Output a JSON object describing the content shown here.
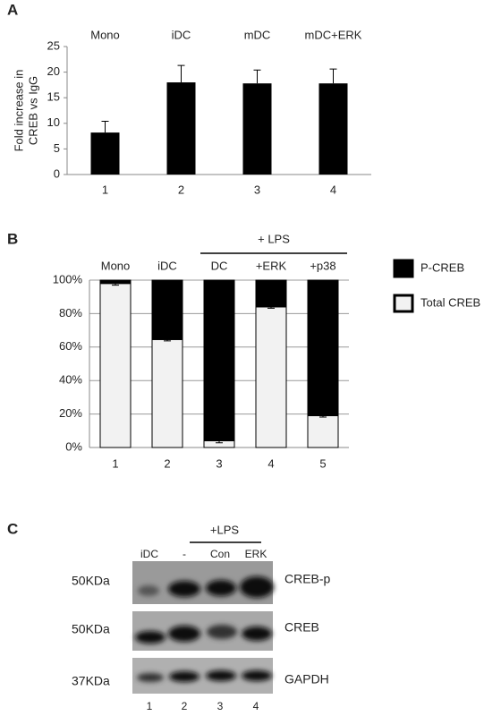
{
  "panels": [
    "A",
    "B",
    "C"
  ],
  "chart_data": [
    {
      "type": "bar",
      "ylabel": [
        "Fold increase in",
        "CREB vs IgG"
      ],
      "group_labels": [
        "Mono",
        "iDC",
        "mDC",
        "mDC+ERK"
      ],
      "categories": [
        "1",
        "2",
        "3",
        "4"
      ],
      "values": [
        8.2,
        18,
        17.8,
        17.8
      ],
      "errors": [
        2.2,
        3.3,
        2.6,
        2.8
      ],
      "color": "#000000",
      "ylim": [
        0,
        25
      ],
      "yticks": [
        0,
        5,
        10,
        15,
        20,
        25
      ],
      "grid": false
    },
    {
      "type": "stacked_bar",
      "span_label": "+ LPS",
      "group_labels": [
        "Mono",
        "iDC",
        "DC",
        "+ERK",
        "+p38"
      ],
      "categories": [
        "1",
        "2",
        "3",
        "4",
        "5"
      ],
      "series": [
        {
          "name": "Total CREB",
          "color": "#f2f2f2",
          "values": [
            98,
            64.5,
            4,
            84,
            19
          ],
          "errors": [
            1,
            0.8,
            1.2,
            0.8,
            0.8
          ]
        },
        {
          "name": "P-CREB",
          "color": "#000000",
          "values": [
            2,
            35.5,
            96,
            16,
            81
          ]
        }
      ],
      "ylim": [
        0,
        100
      ],
      "yticks": [
        {
          "value": 0,
          "label": "0%"
        },
        {
          "value": 20,
          "label": "20%"
        },
        {
          "value": 40,
          "label": "40%"
        },
        {
          "value": 60,
          "label": "60%"
        },
        {
          "value": 80,
          "label": "80%"
        },
        {
          "value": 100,
          "label": "100%"
        }
      ],
      "grid": true,
      "legend": "right"
    }
  ],
  "blot": {
    "span_label": "+LPS",
    "lanes": [
      "iDC",
      "-",
      "Con",
      "ERK"
    ],
    "lane_numbers": [
      "1",
      "2",
      "3",
      "4"
    ],
    "sizes": [
      "50KDa",
      "50KDa",
      "37KDa"
    ],
    "proteins": [
      "CREB-p",
      "CREB",
      "GAPDH"
    ]
  }
}
